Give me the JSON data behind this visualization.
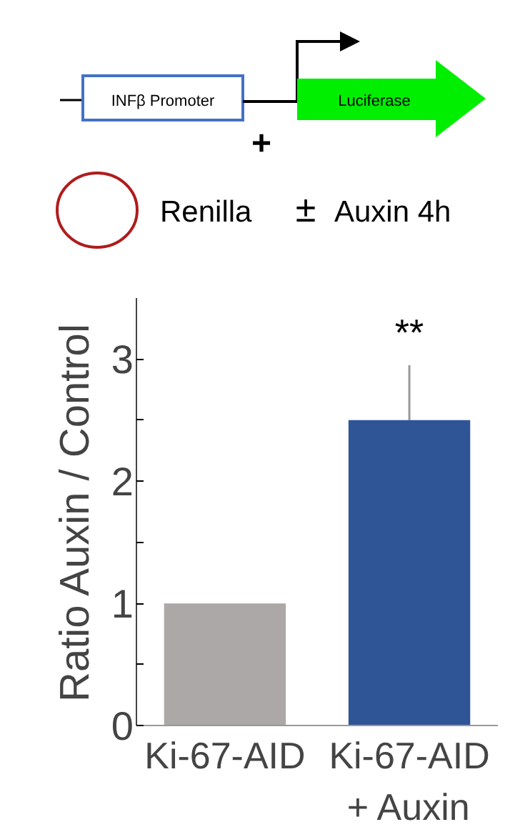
{
  "chart_data": {
    "type": "bar",
    "ylabel": "Ratio Auxin / Control",
    "categories": [
      "Ki-67-AID",
      "Ki-67-AID\n+ Auxin"
    ],
    "values": [
      1.0,
      2.5
    ],
    "colors": [
      "#aba8a7",
      "#2f5597"
    ],
    "errors": [
      null,
      [
        2.5,
        2.95
      ]
    ],
    "ylim": [
      0,
      3.5
    ],
    "yticks": [
      0,
      {
        "value": 0.5,
        "label": null
      },
      1,
      {
        "value": 1.5,
        "label": null
      },
      2,
      {
        "value": 2.5,
        "label": null
      },
      3
    ],
    "grid": false,
    "annotations": [
      "INFβ Promoter",
      "Luciferase",
      "+",
      "Renilla",
      "±",
      "Auxin 4h",
      "**"
    ]
  }
}
